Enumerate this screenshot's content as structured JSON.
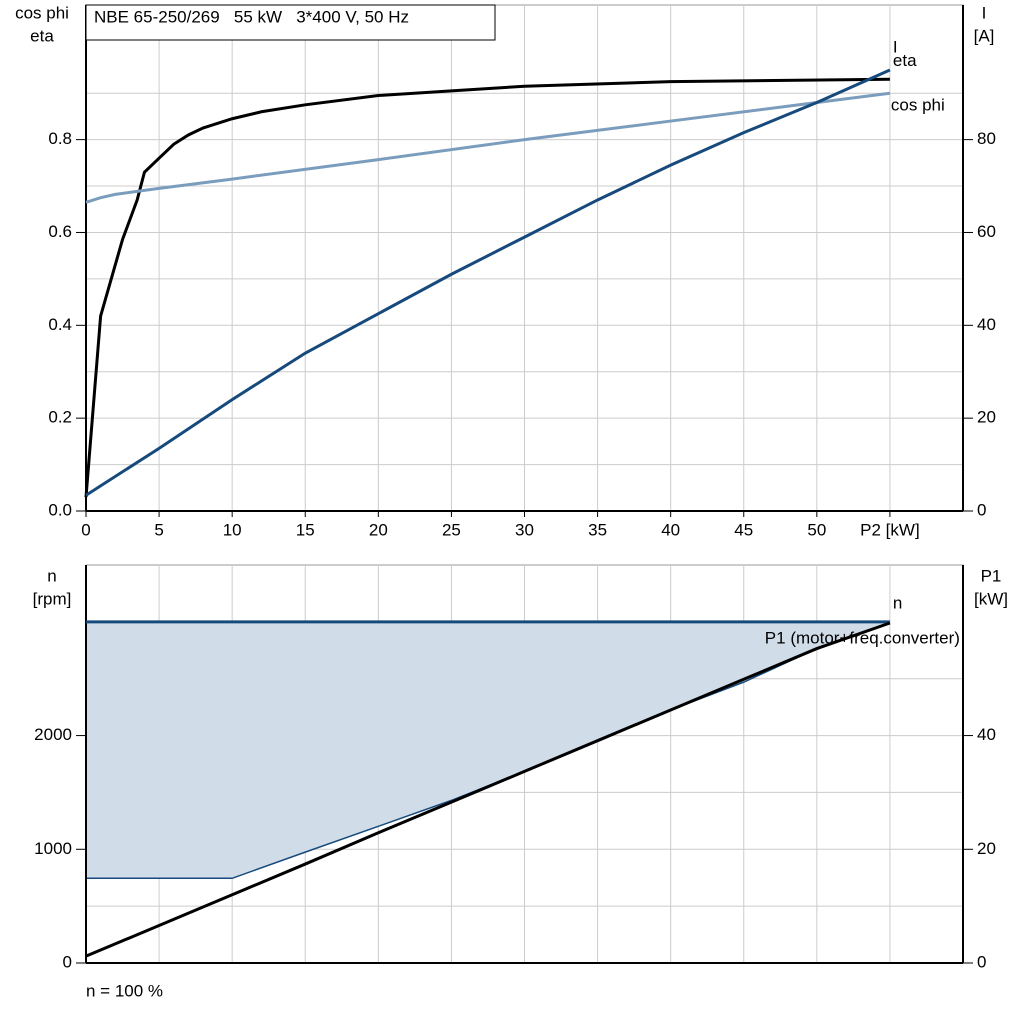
{
  "chart_data": [
    {
      "type": "line",
      "title": "NBE 65-250/269   55 kW   3*400 V, 50 Hz",
      "y_label": [
        "cos phi",
        "eta"
      ],
      "y2_label": [
        "I",
        "[A]"
      ],
      "xlim": [
        0,
        60
      ],
      "xticks": [
        0,
        5,
        10,
        15,
        20,
        25,
        30,
        35,
        40,
        45,
        50,
        {
          "value": 55,
          "label": "P2 [kW]"
        }
      ],
      "ylim": [
        0,
        1.09
      ],
      "yticks": [
        {
          "value": 0,
          "label": "0.0"
        },
        0.2,
        0.4,
        0.6,
        0.8
      ],
      "y2lim": [
        0,
        109
      ],
      "y2ticks": [
        0,
        20,
        40,
        60,
        80
      ],
      "grid": true,
      "series": [
        {
          "name": "eta",
          "color": "#000000",
          "x": [
            0,
            1,
            2.5,
            3.5,
            4,
            5,
            6,
            7,
            8,
            10,
            12,
            15,
            20,
            25,
            30,
            40,
            55
          ],
          "values": [
            0.03,
            0.42,
            0.585,
            0.67,
            0.73,
            0.76,
            0.79,
            0.81,
            0.825,
            0.845,
            0.86,
            0.875,
            0.895,
            0.905,
            0.915,
            0.925,
            0.93
          ]
        },
        {
          "name": "cos phi",
          "color": "#7b9dbd",
          "x": [
            0,
            1,
            2,
            5,
            10,
            20,
            30,
            40,
            50,
            55
          ],
          "values": [
            0.665,
            0.675,
            0.682,
            0.695,
            0.715,
            0.757,
            0.8,
            0.84,
            0.88,
            0.9
          ]
        },
        {
          "name": "I",
          "color": "#174a7c",
          "axis": "y2",
          "x": [
            0,
            5,
            10,
            15,
            20,
            25,
            30,
            35,
            40,
            45,
            50,
            55
          ],
          "values": [
            3.4,
            13.5,
            24,
            34,
            42.5,
            51,
            59,
            67,
            74.5,
            81.5,
            88,
            95
          ]
        }
      ]
    },
    {
      "type": "line",
      "y_label": [
        "n",
        "[rpm]"
      ],
      "y2_label": [
        "P1",
        "[kW]"
      ],
      "note": "n = 100 %",
      "sharex": true,
      "xlim": [
        0,
        60
      ],
      "ylim": [
        0,
        3500
      ],
      "yticks": [
        0,
        1000,
        2000
      ],
      "y2lim": [
        0,
        70
      ],
      "y2ticks": [
        0,
        20,
        40
      ],
      "grid": true,
      "x": [
        0,
        5,
        10,
        15,
        20,
        25,
        30,
        35,
        40,
        45,
        50,
        55
      ],
      "area": {
        "color": "#d0dce8",
        "line_color": "#174a7c",
        "lower": [
          745,
          745,
          745,
          975,
          1202,
          1430,
          1685,
          1955,
          2225,
          2470,
          2765,
          2990
        ]
      },
      "series": [
        {
          "name": "n",
          "color": "#174a7c",
          "values": [
            3000,
            3000,
            3000,
            3000,
            3000,
            3000,
            3000,
            3000,
            3000,
            3000,
            3000,
            3000
          ]
        },
        {
          "name": "P1 (motor+freq.converter)",
          "color": "#000000",
          "axis": "y2",
          "values": [
            1.2,
            6.6,
            12,
            17.4,
            22.9,
            28.3,
            33.7,
            39.1,
            44.5,
            49.9,
            55.3,
            59.8
          ]
        }
      ]
    }
  ]
}
